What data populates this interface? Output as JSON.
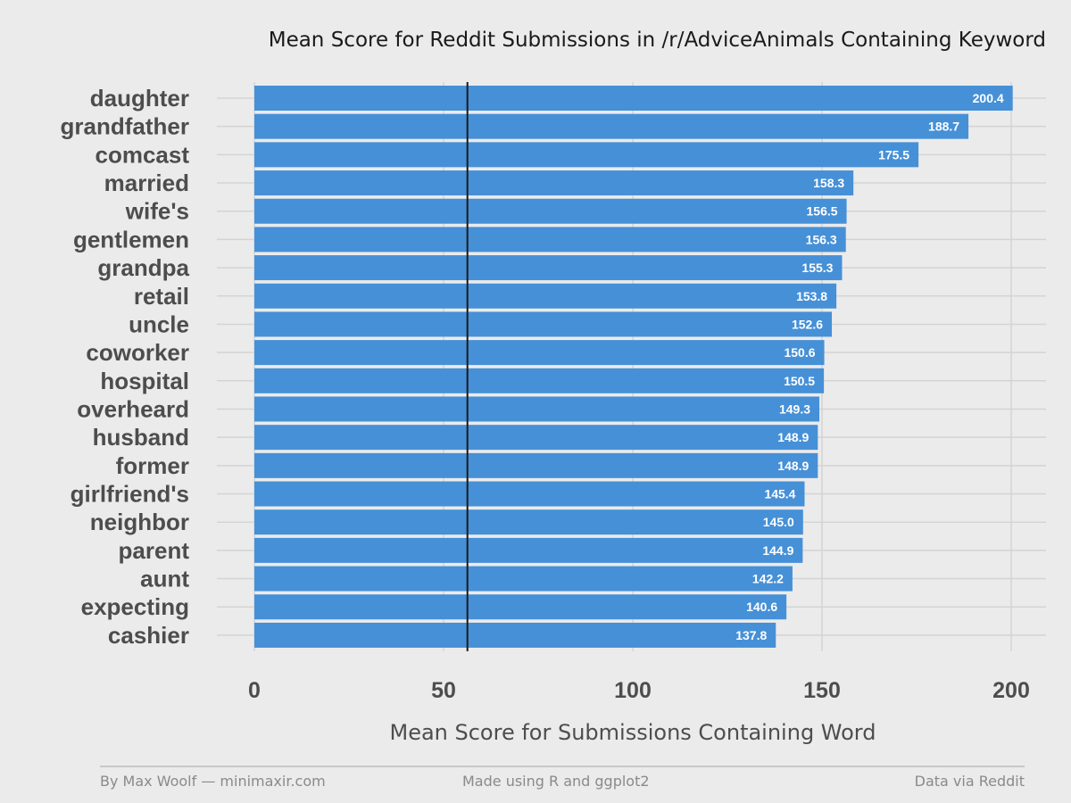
{
  "chart_data": {
    "type": "bar",
    "orientation": "horizontal",
    "title": "Mean Score for Reddit Submissions in /r/AdviceAnimals Containing Keyword",
    "xlabel": "Mean Score for Submissions Containing Word",
    "ylabel": "",
    "xlim": [
      0,
      200
    ],
    "x_ticks": [
      0,
      50,
      100,
      150,
      200
    ],
    "reference_line": 56.3,
    "grid": true,
    "bar_color": "#3d8bd6",
    "reference_line_color": "#1a1a1a",
    "categories": [
      "daughter",
      "grandfather",
      "comcast",
      "married",
      "wife's",
      "gentlemen",
      "grandpa",
      "retail",
      "uncle",
      "coworker",
      "hospital",
      "overheard",
      "husband",
      "former",
      "girlfriend's",
      "neighbor",
      "parent",
      "aunt",
      "expecting",
      "cashier"
    ],
    "values": [
      200.4,
      188.7,
      175.5,
      158.3,
      156.5,
      156.3,
      155.3,
      153.8,
      152.6,
      150.6,
      150.5,
      149.3,
      148.9,
      148.9,
      145.4,
      145.0,
      144.9,
      142.2,
      140.6,
      137.8
    ],
    "value_labels": [
      "200.4",
      "188.7",
      "175.5",
      "158.3",
      "156.5",
      "156.3",
      "155.3",
      "153.8",
      "152.6",
      "150.6",
      "150.5",
      "149.3",
      "148.9",
      "148.9",
      "145.4",
      "145.0",
      "144.9",
      "142.2",
      "140.6",
      "137.8"
    ]
  },
  "footer": {
    "left": "By Max Woolf — minimaxir.com",
    "center": "Made using R and ggplot2",
    "right": "Data via Reddit"
  }
}
